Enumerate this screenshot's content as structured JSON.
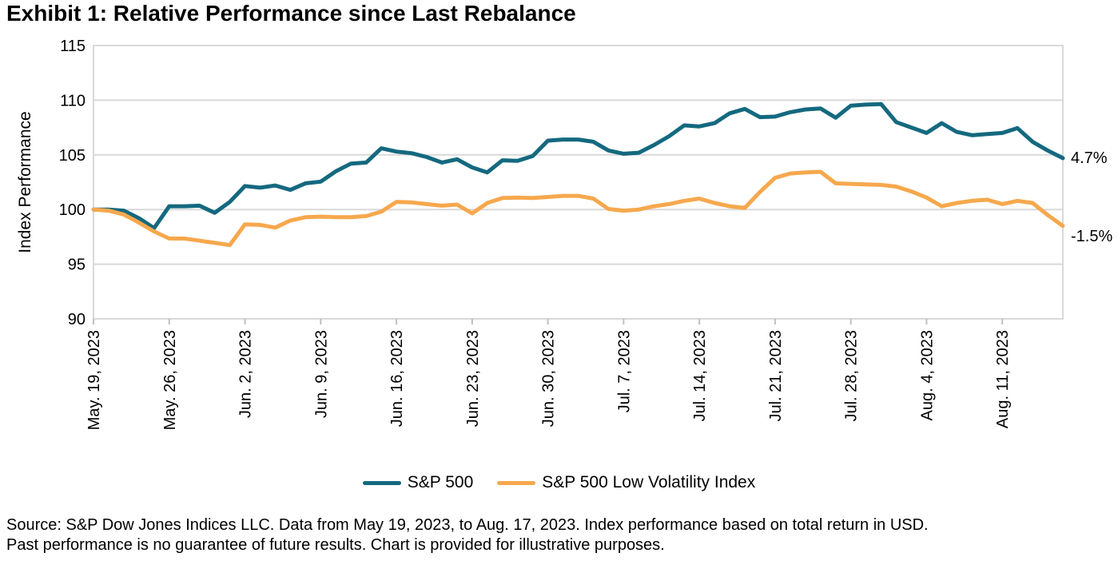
{
  "title": "Exhibit 1: Relative Performance since Last Rebalance",
  "y_axis_title": "Index Performance",
  "end_labels": {
    "sp500": "4.7%",
    "low_vol": "-1.5%"
  },
  "legend": {
    "sp500": "S&P 500",
    "low_vol": "S&P 500 Low Volatility Index"
  },
  "footer": {
    "line1": "Source: S&P Dow Jones Indices LLC. Data from May 19, 2023, to Aug. 17, 2023. Index performance based on total return in USD.",
    "line2": "Past performance is no guarantee of future results. Chart is provided for illustrative purposes."
  },
  "colors": {
    "sp500": "#14697F",
    "low_vol": "#F6A84D",
    "grid": "#D9D9D9",
    "tick": "#BFBFBF",
    "text": "#000000"
  },
  "chart_data": {
    "type": "line",
    "title": "Exhibit 1: Relative Performance since Last Rebalance",
    "ylabel": "Index Performance",
    "xlabel": "",
    "ylim": [
      90,
      115
    ],
    "yticks": [
      90,
      95,
      100,
      105,
      110,
      115
    ],
    "grid": "horizontal",
    "legend_position": "bottom",
    "x": [
      "May 19",
      "May 22",
      "May 23",
      "May 24",
      "May 25",
      "May 26",
      "May 29",
      "May 30",
      "May 31",
      "Jun 1",
      "Jun 2",
      "Jun 5",
      "Jun 6",
      "Jun 7",
      "Jun 8",
      "Jun 9",
      "Jun 12",
      "Jun 13",
      "Jun 14",
      "Jun 15",
      "Jun 16",
      "Jun 19",
      "Jun 20",
      "Jun 21",
      "Jun 22",
      "Jun 23",
      "Jun 26",
      "Jun 27",
      "Jun 28",
      "Jun 29",
      "Jun 30",
      "Jul 3",
      "Jul 4",
      "Jul 5",
      "Jul 6",
      "Jul 7",
      "Jul 10",
      "Jul 11",
      "Jul 12",
      "Jul 13",
      "Jul 14",
      "Jul 17",
      "Jul 18",
      "Jul 19",
      "Jul 20",
      "Jul 21",
      "Jul 24",
      "Jul 25",
      "Jul 26",
      "Jul 27",
      "Jul 28",
      "Jul 31",
      "Aug 1",
      "Aug 2",
      "Aug 3",
      "Aug 4",
      "Aug 7",
      "Aug 8",
      "Aug 9",
      "Aug 10",
      "Aug 11",
      "Aug 14",
      "Aug 15",
      "Aug 16",
      "Aug 17"
    ],
    "x_tick_labels": [
      "May. 19, 2023",
      "May. 26, 2023",
      "Jun. 2, 2023",
      "Jun. 9, 2023",
      "Jun. 16, 2023",
      "Jun. 23, 2023",
      "Jun. 30, 2023",
      "Jul. 7, 2023",
      "Jul. 14, 2023",
      "Jul. 21, 2023",
      "Jul. 28, 2023",
      "Aug. 4, 2023",
      "Aug. 11, 2023"
    ],
    "x_tick_indices": [
      0,
      5,
      10,
      15,
      20,
      25,
      30,
      35,
      40,
      45,
      50,
      55,
      60
    ],
    "series": [
      {
        "name": "S&P 500",
        "end_label": "4.7%",
        "values": [
          100.0,
          100.0,
          99.9,
          99.2,
          98.3,
          100.3,
          100.3,
          100.35,
          99.7,
          100.7,
          102.15,
          102.0,
          102.2,
          101.8,
          102.4,
          102.55,
          103.5,
          104.2,
          104.3,
          105.6,
          105.3,
          105.15,
          104.8,
          104.3,
          104.6,
          103.85,
          103.4,
          104.5,
          104.45,
          104.9,
          106.3,
          106.4,
          106.4,
          106.2,
          105.4,
          105.1,
          105.2,
          105.9,
          106.7,
          107.7,
          107.6,
          107.9,
          108.8,
          109.2,
          108.45,
          108.5,
          108.9,
          109.15,
          109.25,
          108.4,
          109.5,
          109.6,
          109.65,
          108.0,
          107.5,
          107.0,
          107.9,
          107.1,
          106.8,
          106.9,
          107.0,
          107.45,
          106.2,
          105.4,
          104.7
        ]
      },
      {
        "name": "S&P 500 Low Volatility Index",
        "end_label": "-1.5%",
        "values": [
          100.0,
          99.9,
          99.55,
          98.8,
          98.0,
          97.35,
          97.35,
          97.15,
          96.95,
          96.75,
          98.65,
          98.6,
          98.35,
          99.0,
          99.3,
          99.35,
          99.3,
          99.3,
          99.4,
          99.8,
          100.7,
          100.65,
          100.5,
          100.35,
          100.45,
          99.65,
          100.6,
          101.05,
          101.1,
          101.05,
          101.15,
          101.25,
          101.25,
          101.0,
          100.05,
          99.9,
          100.0,
          100.3,
          100.5,
          100.8,
          101.0,
          100.6,
          100.3,
          100.15,
          101.6,
          102.9,
          103.3,
          103.4,
          103.45,
          102.4,
          102.35,
          102.3,
          102.25,
          102.1,
          101.65,
          101.1,
          100.3,
          100.6,
          100.8,
          100.9,
          100.5,
          100.8,
          100.6,
          99.5,
          98.5
        ]
      }
    ]
  }
}
